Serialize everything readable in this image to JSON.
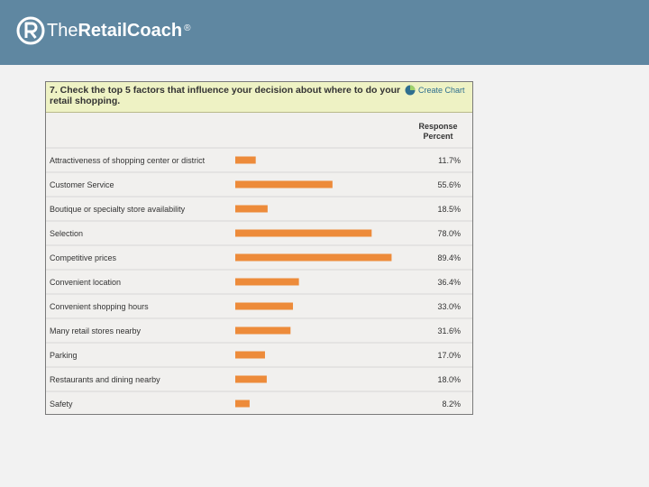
{
  "header": {
    "logo_prefix": "The",
    "logo_bold": "RetailCoach",
    "logo_reg": "®",
    "bg_color": "#5f87a1"
  },
  "survey": {
    "question": "7. Check the top 5 factors that influence your decision about where to do your retail shopping.",
    "create_chart_label": "Create Chart",
    "create_chart_icon": "pie-chart-icon",
    "column_header_line1": "Response",
    "column_header_line2": "Percent"
  },
  "chart_data": {
    "type": "bar",
    "orientation": "horizontal",
    "bar_color": "#ed8b3a",
    "xlim": [
      0,
      100
    ],
    "categories": [
      "Attractiveness of shopping center or district",
      "Customer Service",
      "Boutique or specialty store availability",
      "Selection",
      "Competitive prices",
      "Convenient location",
      "Convenient shopping hours",
      "Many retail stores nearby",
      "Parking",
      "Restaurants and dining nearby",
      "Safety"
    ],
    "values": [
      11.7,
      55.6,
      18.5,
      78.0,
      89.4,
      36.4,
      33.0,
      31.6,
      17.0,
      18.0,
      8.2
    ],
    "labels": [
      "11.7%",
      "55.6%",
      "18.5%",
      "78.0%",
      "89.4%",
      "36.4%",
      "33.0%",
      "31.6%",
      "17.0%",
      "18.0%",
      "8.2%"
    ]
  }
}
